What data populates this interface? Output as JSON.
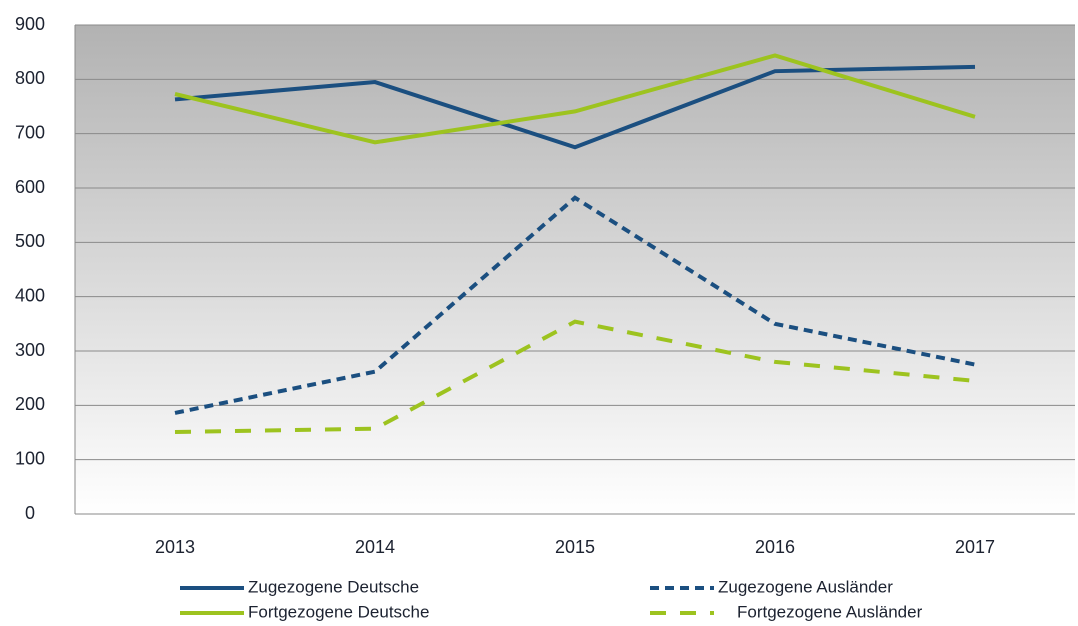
{
  "chart_data": {
    "type": "line",
    "categories": [
      "2013",
      "2014",
      "2015",
      "2016",
      "2017"
    ],
    "series": [
      {
        "name": "Zugezogene Deutsche",
        "color": "#1b4f80",
        "dash": false,
        "values": [
          763,
          795,
          675,
          815,
          823
        ]
      },
      {
        "name": "Fortgezogene Deutsche",
        "color": "#9dc31f",
        "dash": false,
        "values": [
          773,
          684,
          741,
          844,
          731
        ]
      },
      {
        "name": "Zugezogene Ausländer",
        "color": "#1b4f80",
        "dash": true,
        "values": [
          186,
          262,
          582,
          350,
          275
        ]
      },
      {
        "name": "Fortgezogene Ausländer",
        "color": "#9dc31f",
        "dash": true,
        "values": [
          151,
          157,
          354,
          280,
          245
        ]
      }
    ],
    "ylim": [
      0,
      900
    ],
    "yticks": [
      0,
      100,
      200,
      300,
      400,
      500,
      600,
      700,
      800,
      900
    ],
    "grid": true
  }
}
